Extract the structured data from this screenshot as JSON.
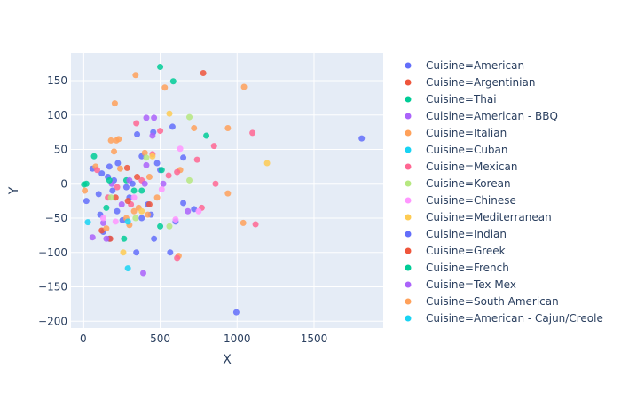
{
  "chart_data": {
    "type": "scatter",
    "title": "",
    "xlabel": "X",
    "ylabel": "Y",
    "xlim": [
      -80,
      1950
    ],
    "ylim": [
      -210,
      190
    ],
    "xticks": [
      0,
      500,
      1000,
      1500
    ],
    "yticks": [
      -200,
      -150,
      -100,
      -50,
      0,
      50,
      100,
      150
    ],
    "xtick_labels": [
      "0",
      "500",
      "1000",
      "1500"
    ],
    "ytick_labels": [
      "−200",
      "−150",
      "−100",
      "−50",
      "0",
      "50",
      "100",
      "150"
    ],
    "grid": true,
    "legend_position": "right",
    "series": [
      {
        "name": "Cuisine=American",
        "color": "#636efa",
        "points": [
          [
            1810,
            66
          ],
          [
            995,
            -187
          ],
          [
            160,
            10
          ],
          [
            110,
            -45
          ],
          [
            580,
            83
          ],
          [
            455,
            75
          ],
          [
            255,
            -53
          ],
          [
            345,
            -100
          ],
          [
            225,
            30
          ],
          [
            565,
            -100
          ],
          [
            650,
            38
          ],
          [
            720,
            -37
          ],
          [
            420,
            -30
          ],
          [
            480,
            30
          ],
          [
            300,
            -20
          ],
          [
            130,
            -70
          ],
          [
            60,
            22
          ],
          [
            440,
            -45
          ],
          [
            350,
            72
          ],
          [
            220,
            -40
          ],
          [
            200,
            5
          ],
          [
            170,
            -80
          ],
          [
            380,
            40
          ],
          [
            120,
            15
          ],
          [
            500,
            20
          ],
          [
            600,
            -55
          ],
          [
            650,
            -28
          ],
          [
            460,
            -80
          ],
          [
            100,
            -15
          ],
          [
            20,
            -25
          ]
        ]
      },
      {
        "name": "Cuisine=Argentinian",
        "color": "#EF553B",
        "points": [
          [
            780,
            161
          ],
          [
            285,
            23
          ],
          [
            175,
            -80
          ],
          [
            120,
            -68
          ],
          [
            210,
            -20
          ]
        ]
      },
      {
        "name": "Cuisine=Thai",
        "color": "#00cc96",
        "points": [
          [
            500,
            170
          ],
          [
            585,
            149
          ],
          [
            800,
            70
          ],
          [
            510,
            20
          ],
          [
            265,
            -80
          ],
          [
            70,
            40
          ],
          [
            150,
            -35
          ],
          [
            380,
            -10
          ],
          [
            20,
            0
          ],
          [
            280,
            5
          ],
          [
            500,
            -62
          ],
          [
            5,
            -1
          ]
        ]
      },
      {
        "name": "Cuisine=American - BBQ",
        "color": "#ab63fa",
        "points": [
          [
            410,
            96
          ],
          [
            460,
            96
          ],
          [
            450,
            70
          ],
          [
            390,
            -130
          ],
          [
            410,
            27
          ],
          [
            520,
            0
          ],
          [
            300,
            5
          ],
          [
            130,
            -57
          ],
          [
            150,
            -80
          ],
          [
            60,
            -78
          ],
          [
            680,
            -40
          ],
          [
            185,
            0
          ]
        ]
      },
      {
        "name": "Cuisine=Italian",
        "color": "#FFA15A",
        "points": [
          [
            340,
            158
          ],
          [
            1045,
            141
          ],
          [
            530,
            140
          ],
          [
            205,
            117
          ],
          [
            940,
            81
          ],
          [
            720,
            81
          ],
          [
            180,
            63
          ],
          [
            215,
            63
          ],
          [
            240,
            22
          ],
          [
            940,
            -14
          ],
          [
            1040,
            -57
          ],
          [
            620,
            -105
          ],
          [
            430,
            10
          ],
          [
            80,
            25
          ],
          [
            330,
            -40
          ],
          [
            280,
            -50
          ],
          [
            300,
            -60
          ],
          [
            480,
            -20
          ],
          [
            150,
            -65
          ],
          [
            360,
            -35
          ],
          [
            400,
            45
          ],
          [
            200,
            47
          ],
          [
            630,
            20
          ],
          [
            10,
            -10
          ]
        ]
      },
      {
        "name": "Cuisine=Cuban",
        "color": "#19d3f3",
        "points": [
          [
            290,
            -123
          ],
          [
            30,
            -56
          ]
        ]
      },
      {
        "name": "Cuisine=Mexican",
        "color": "#FF6692",
        "points": [
          [
            1100,
            74
          ],
          [
            850,
            55
          ],
          [
            740,
            35
          ],
          [
            860,
            0
          ],
          [
            1120,
            -59
          ],
          [
            610,
            -108
          ],
          [
            770,
            -35
          ],
          [
            610,
            17
          ],
          [
            500,
            77
          ],
          [
            345,
            88
          ],
          [
            450,
            43
          ],
          [
            310,
            -30
          ],
          [
            90,
            20
          ],
          [
            160,
            -20
          ],
          [
            555,
            12
          ],
          [
            220,
            -5
          ],
          [
            380,
            5
          ]
        ]
      },
      {
        "name": "Cuisine=Korean",
        "color": "#B6E880",
        "points": [
          [
            690,
            97
          ],
          [
            340,
            -50
          ],
          [
            180,
            -20
          ],
          [
            690,
            5
          ],
          [
            560,
            -62
          ],
          [
            410,
            38
          ]
        ]
      },
      {
        "name": "Cuisine=Chinese",
        "color": "#FF97FF",
        "points": [
          [
            630,
            51
          ],
          [
            600,
            -52
          ],
          [
            750,
            -40
          ],
          [
            510,
            -8
          ],
          [
            330,
            -20
          ],
          [
            210,
            -55
          ],
          [
            130,
            -50
          ]
        ]
      },
      {
        "name": "Cuisine=Mediterranean",
        "color": "#FECB52",
        "points": [
          [
            1195,
            30
          ],
          [
            560,
            102
          ],
          [
            450,
            40
          ],
          [
            260,
            -100
          ],
          [
            380,
            -40
          ]
        ]
      },
      {
        "name": "Cuisine=Indian",
        "color": "#636efa",
        "points": [
          [
            190,
            -10
          ],
          [
            170,
            25
          ],
          [
            280,
            -5
          ],
          [
            320,
            0
          ],
          [
            380,
            -50
          ]
        ]
      },
      {
        "name": "Cuisine=Greek",
        "color": "#EF553B",
        "points": [
          [
            350,
            10
          ],
          [
            430,
            -30
          ],
          [
            290,
            -25
          ]
        ]
      },
      {
        "name": "Cuisine=French",
        "color": "#00cc96",
        "points": [
          [
            170,
            5
          ],
          [
            330,
            -10
          ]
        ]
      },
      {
        "name": "Cuisine=Tex Mex",
        "color": "#ab63fa",
        "points": [
          [
            400,
            0
          ],
          [
            250,
            -30
          ]
        ]
      },
      {
        "name": "Cuisine=South American",
        "color": "#FFA15A",
        "points": [
          [
            230,
            65
          ],
          [
            420,
            -45
          ]
        ]
      },
      {
        "name": "Cuisine=American - Cajun/Creole",
        "color": "#19d3f3",
        "points": [
          [
            290,
            -55
          ]
        ]
      }
    ]
  }
}
